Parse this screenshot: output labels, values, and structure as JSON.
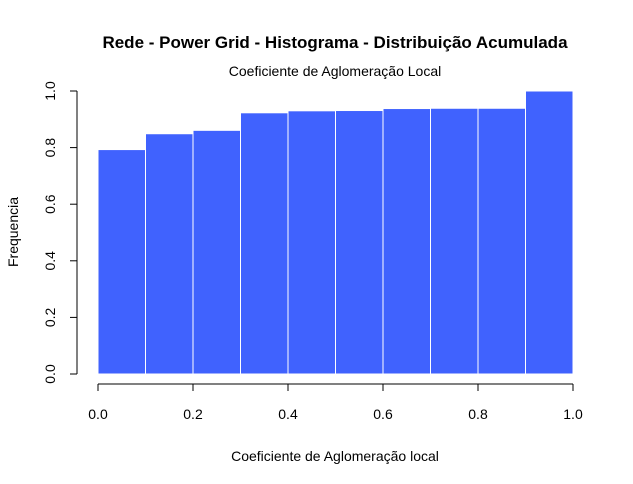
{
  "chart_data": {
    "type": "bar",
    "title": "Rede - Power Grid - Histograma - Distribuição Acumulada",
    "subtitle": "Coeficiente de Aglomeração Local",
    "xlabel": "Coeficiente de Aglomeração local",
    "ylabel": "Frequencia",
    "bins": [
      {
        "from": 0.0,
        "to": 0.1,
        "value": 0.793
      },
      {
        "from": 0.1,
        "to": 0.2,
        "value": 0.849
      },
      {
        "from": 0.2,
        "to": 0.3,
        "value": 0.861
      },
      {
        "from": 0.3,
        "to": 0.4,
        "value": 0.923
      },
      {
        "from": 0.4,
        "to": 0.5,
        "value": 0.93
      },
      {
        "from": 0.5,
        "to": 0.6,
        "value": 0.931
      },
      {
        "from": 0.6,
        "to": 0.7,
        "value": 0.938
      },
      {
        "from": 0.7,
        "to": 0.8,
        "value": 0.939
      },
      {
        "from": 0.8,
        "to": 0.9,
        "value": 0.939
      },
      {
        "from": 0.9,
        "to": 1.0,
        "value": 1.0
      }
    ],
    "xlim": [
      0,
      1
    ],
    "ylim": [
      0,
      1
    ],
    "xticks": [
      "0.0",
      "0.2",
      "0.4",
      "0.6",
      "0.8",
      "1.0"
    ],
    "yticks": [
      "0.0",
      "0.2",
      "0.4",
      "0.6",
      "0.8",
      "1.0"
    ],
    "bar_color": "#4062FE",
    "grid": false,
    "legend": "none"
  }
}
